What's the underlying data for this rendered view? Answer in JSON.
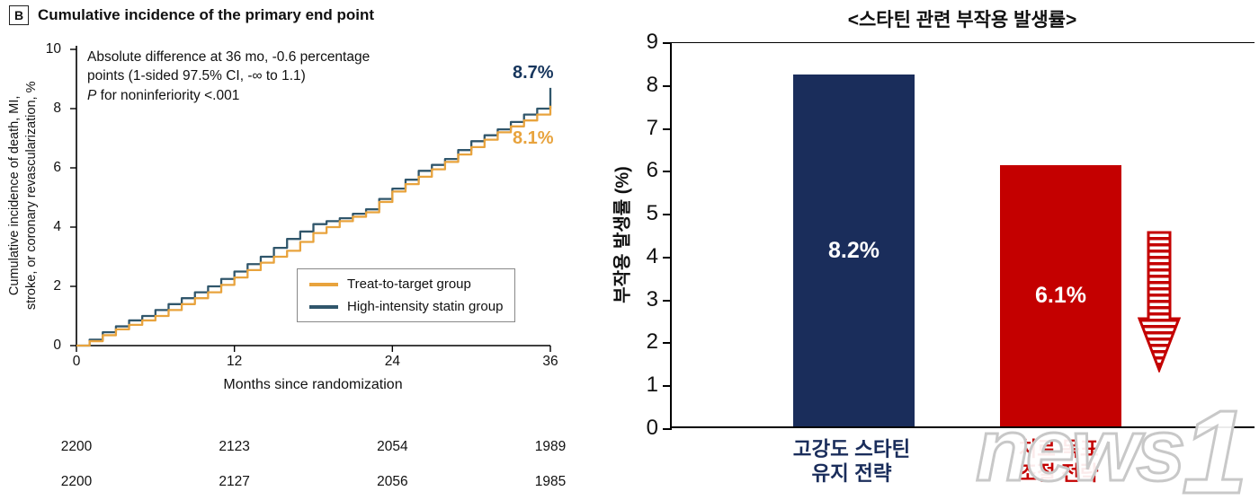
{
  "left_chart": {
    "panel_letter": "B",
    "title": "Cumulative incidence of the primary end point",
    "ylabel": "Cumulative incidence of death, MI,\nstroke, or coronary revascularization, %",
    "xlabel": "Months since randomization",
    "annotation": {
      "text": "Absolute difference at 36 mo, -0.6 percentage points (1-sided 97.5% CI, -∞ to 1.1)",
      "p_italic": "P",
      "p_rest": " for noninferiority <.001"
    },
    "end_labels": {
      "high_intensity": "8.7%",
      "treat_to_target": "8.1%"
    },
    "legend": [
      {
        "label": "Treat-to-target group"
      },
      {
        "label": "High-intensity statin group"
      }
    ]
  },
  "right_chart": {
    "title": "<스타틴 관련 부작용 발생률>",
    "ylabel": "부작용 발생률 (%)",
    "bars": [
      {
        "value_label": "8.2%",
        "label_line1": "고강도 스타틴",
        "label_line2": "유지 전략"
      },
      {
        "value_label": "6.1%",
        "label_line1": "치료 목표",
        "label_line2": "조절 전략"
      }
    ]
  },
  "watermark": {
    "part1": "news",
    "part2": "1"
  },
  "colors": {
    "treat_to_target": "#E8A33D",
    "high_intensity_line": "#30566B",
    "high_intensity_label": "#17365D",
    "bar_navy": "#1A2D5B",
    "bar_red": "#C40000"
  },
  "chart_data": [
    {
      "type": "line",
      "title": "Cumulative incidence of the primary end point",
      "xlabel": "Months since randomization",
      "ylabel": "Cumulative incidence of death, MI, stroke, or coronary revascularization, %",
      "xlim": [
        0,
        36
      ],
      "ylim": [
        0,
        10
      ],
      "xticks": [
        0,
        12,
        24,
        36
      ],
      "yticks": [
        0,
        2,
        4,
        6,
        8,
        10
      ],
      "grid": false,
      "legend_position": "inside lower-right box",
      "series": [
        {
          "name": "Treat-to-target group",
          "color": "#E8A33D",
          "end_label": "8.1%",
          "values": [
            0,
            0.15,
            0.35,
            0.55,
            0.7,
            0.85,
            1.0,
            1.2,
            1.4,
            1.6,
            1.8,
            2.05,
            2.3,
            2.55,
            2.8,
            3.0,
            3.2,
            3.5,
            3.8,
            4.0,
            4.2,
            4.35,
            4.5,
            4.85,
            5.2,
            5.45,
            5.7,
            5.95,
            6.2,
            6.45,
            6.7,
            6.95,
            7.2,
            7.4,
            7.6,
            7.8,
            8.1
          ]
        },
        {
          "name": "High-intensity statin group",
          "color": "#30566B",
          "end_label": "8.7%",
          "values": [
            0,
            0.2,
            0.45,
            0.65,
            0.85,
            1.0,
            1.2,
            1.4,
            1.6,
            1.8,
            2.0,
            2.25,
            2.5,
            2.75,
            3.0,
            3.3,
            3.6,
            3.85,
            4.1,
            4.2,
            4.3,
            4.45,
            4.6,
            4.95,
            5.3,
            5.6,
            5.9,
            6.1,
            6.3,
            6.6,
            6.9,
            7.1,
            7.3,
            7.55,
            7.8,
            8.0,
            8.7
          ]
        }
      ],
      "annotation": "Absolute difference at 36 mo, -0.6 percentage points (1-sided 97.5% CI, -∞ to 1.1) P for noninferiority <.001",
      "numbers_at_risk": [
        [
          "2200",
          "2123",
          "2054",
          "1989"
        ],
        [
          "2200",
          "2127",
          "2056",
          "1985"
        ]
      ]
    },
    {
      "type": "bar",
      "title": "<스타틴 관련 부작용 발생률>",
      "ylabel": "부작용 발생률 (%)",
      "ylim": [
        0,
        9
      ],
      "yticks": [
        0,
        1,
        2,
        3,
        4,
        5,
        6,
        7,
        8,
        9
      ],
      "categories": [
        "고강도 스타틴 유지 전략",
        "치료 목표 조절 전략"
      ],
      "values": [
        8.2,
        6.1
      ],
      "value_labels": [
        "8.2%",
        "6.1%"
      ],
      "colors": [
        "#1A2D5B",
        "#C40000"
      ]
    }
  ]
}
